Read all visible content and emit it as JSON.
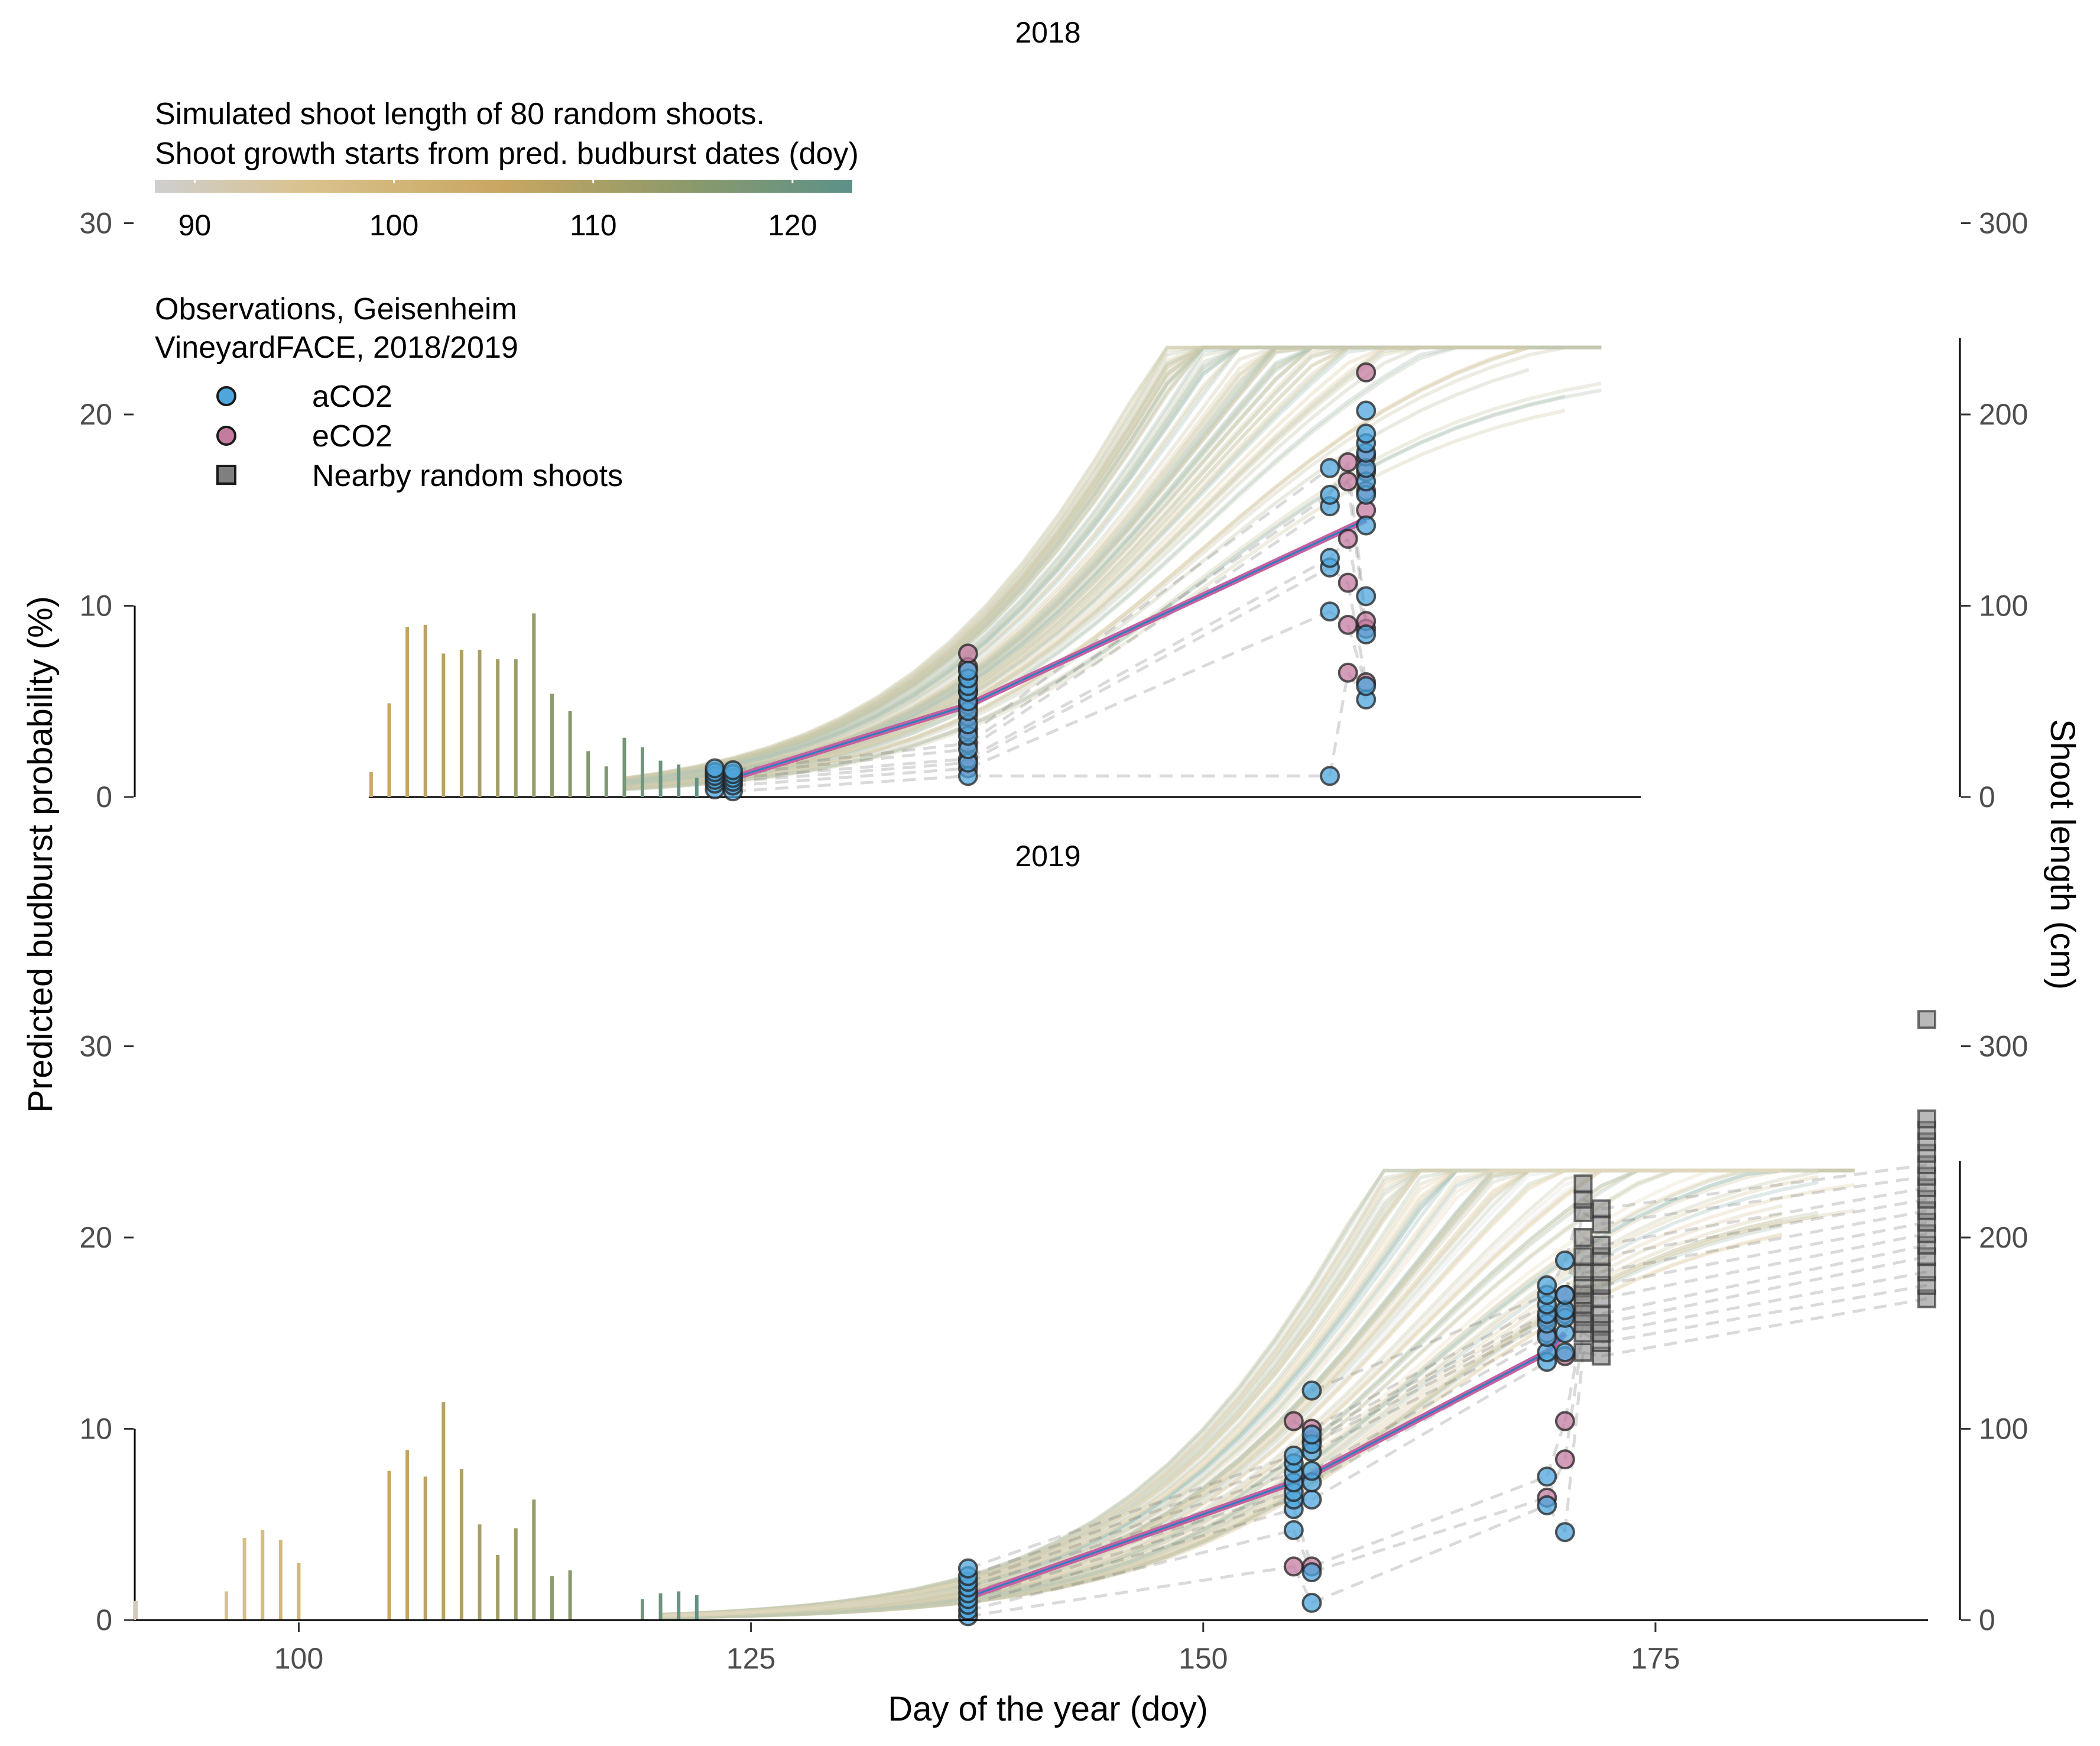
{
  "colors": {
    "grey": "#cfcfcf",
    "tan": "#d9c28c",
    "gold": "#c9a661",
    "olive": "#8f9a6a",
    "green": "#6d9272",
    "teal": "#5c9188",
    "aco2": "#4ea6dc",
    "eco2": "#c47ba0",
    "random": "#7f7f7f",
    "mean_line": "#c560a0"
  },
  "chart_data": {
    "type": "composite",
    "xlabel": "Day of the year (doy)",
    "ylabel_left": "Predicted budburst probability (%)",
    "ylabel_right": "Shoot length (cm)",
    "xlim": [
      91,
      190
    ],
    "x_ticks": [
      "100",
      "125",
      "150",
      "175"
    ],
    "x_tick_values": [
      100,
      125,
      150,
      175
    ],
    "ylim_left": [
      0,
      30
    ],
    "ylim_right": [
      0,
      300
    ],
    "y_ticks_left": [
      "0",
      "10",
      "20",
      "30"
    ],
    "y_ticks_right": [
      "0",
      "100",
      "200",
      "300"
    ],
    "colorbar": {
      "title_line1": "Simulated shoot length of 80 random shoots.",
      "title_line2": "Shoot growth starts from pred. budburst dates (doy)",
      "ticks": [
        "90",
        "100",
        "110",
        "120"
      ],
      "tick_values": [
        90,
        100,
        110,
        120
      ],
      "range": [
        88,
        123
      ]
    },
    "legend": {
      "title_line1": "Observations, Geisenheim",
      "title_line2": "VineyardFACE, 2018/2019",
      "items": [
        {
          "label": "aCO2",
          "shape": "circle",
          "color": "#4ea6dc"
        },
        {
          "label": "eCO2",
          "shape": "circle",
          "color": "#c47ba0"
        },
        {
          "label": "Nearby random shoots",
          "shape": "square",
          "color": "#7f7f7f"
        }
      ]
    },
    "panels": [
      {
        "title": "2018",
        "budburst_bars": [
          {
            "doy": 104,
            "pct": 1.3
          },
          {
            "doy": 105,
            "pct": 4.9
          },
          {
            "doy": 106,
            "pct": 8.9
          },
          {
            "doy": 107,
            "pct": 9.0
          },
          {
            "doy": 108,
            "pct": 7.5
          },
          {
            "doy": 109,
            "pct": 7.7
          },
          {
            "doy": 110,
            "pct": 7.7
          },
          {
            "doy": 111,
            "pct": 7.2
          },
          {
            "doy": 112,
            "pct": 7.2
          },
          {
            "doy": 113,
            "pct": 9.6
          },
          {
            "doy": 114,
            "pct": 5.4
          },
          {
            "doy": 115,
            "pct": 4.5
          },
          {
            "doy": 116,
            "pct": 2.4
          },
          {
            "doy": 117,
            "pct": 1.6
          },
          {
            "doy": 118,
            "pct": 3.1
          },
          {
            "doy": 119,
            "pct": 2.6
          },
          {
            "doy": 120,
            "pct": 1.9
          },
          {
            "doy": 121,
            "pct": 1.7
          },
          {
            "doy": 122,
            "pct": 1.0
          }
        ],
        "mean_shoot_length": [
          [
            123,
            8
          ],
          [
            124,
            10
          ],
          [
            137,
            48
          ],
          [
            159,
            145
          ]
        ],
        "obs_aco2": [
          {
            "doy": 123,
            "cm": [
              4,
              7,
              9,
              11,
              13,
              15
            ]
          },
          {
            "doy": 124,
            "cm": [
              3,
              6,
              8,
              10,
              12,
              14
            ]
          },
          {
            "doy": 137,
            "cm": [
              11,
              18,
              25,
              32,
              38,
              45,
              50,
              55,
              58,
              62,
              66
            ]
          },
          {
            "doy": 157,
            "cm": [
              11,
              97,
              120,
              125,
              152,
              158,
              172
            ]
          },
          {
            "doy": 159,
            "cm": [
              51,
              58,
              85,
              105,
              142,
              158,
              165,
              172,
              180,
              185,
              190,
              202
            ]
          }
        ],
        "obs_eco2": [
          {
            "doy": 137,
            "cm": [
              15,
              20,
              28,
              35,
              42,
              48,
              55,
              62,
              68,
              75
            ]
          },
          {
            "doy": 158,
            "cm": [
              65,
              90,
              112,
              135,
              165,
              175
            ]
          },
          {
            "doy": 159,
            "cm": [
              60,
              88,
              92,
              150,
              160,
              170,
              178,
              222
            ]
          }
        ],
        "random_shoots": []
      },
      {
        "title": "2019",
        "budburst_bars": [
          {
            "doy": 91,
            "pct": 1.0
          },
          {
            "doy": 96,
            "pct": 1.5
          },
          {
            "doy": 97,
            "pct": 4.3
          },
          {
            "doy": 98,
            "pct": 4.7
          },
          {
            "doy": 99,
            "pct": 4.2
          },
          {
            "doy": 100,
            "pct": 3.0
          },
          {
            "doy": 105,
            "pct": 7.8
          },
          {
            "doy": 106,
            "pct": 8.9
          },
          {
            "doy": 107,
            "pct": 7.5
          },
          {
            "doy": 108,
            "pct": 11.4
          },
          {
            "doy": 109,
            "pct": 7.9
          },
          {
            "doy": 110,
            "pct": 5.0
          },
          {
            "doy": 111,
            "pct": 3.4
          },
          {
            "doy": 112,
            "pct": 4.8
          },
          {
            "doy": 113,
            "pct": 6.3
          },
          {
            "doy": 114,
            "pct": 2.3
          },
          {
            "doy": 115,
            "pct": 2.6
          },
          {
            "doy": 119,
            "pct": 1.1
          },
          {
            "doy": 120,
            "pct": 1.4
          },
          {
            "doy": 121,
            "pct": 1.5
          },
          {
            "doy": 122,
            "pct": 1.3
          }
        ],
        "mean_shoot_length": [
          [
            137,
            12
          ],
          [
            155,
            72
          ],
          [
            156,
            76
          ],
          [
            169,
            140
          ],
          [
            170,
            150
          ]
        ],
        "obs_aco2": [
          {
            "doy": 137,
            "cm": [
              2,
              5,
              8,
              11,
              14,
              17,
              20,
              23,
              27
            ]
          },
          {
            "doy": 155,
            "cm": [
              47,
              58,
              63,
              67,
              72,
              77,
              82,
              86
            ]
          },
          {
            "doy": 156,
            "cm": [
              9,
              25,
              63,
              72,
              78,
              88,
              92,
              97,
              120
            ]
          },
          {
            "doy": 169,
            "cm": [
              60,
              75,
              135,
              140,
              148,
              155,
              160,
              165,
              170,
              175
            ]
          },
          {
            "doy": 170,
            "cm": [
              46,
              140,
              150,
              158,
              162,
              170,
              188
            ]
          }
        ],
        "obs_eco2": [
          {
            "doy": 155,
            "cm": [
              28,
              104
            ]
          },
          {
            "doy": 156,
            "cm": [
              28,
              94,
              100
            ]
          },
          {
            "doy": 169,
            "cm": [
              64,
              150,
              158
            ]
          },
          {
            "doy": 170,
            "cm": [
              84,
              104,
              138,
              160,
              170
            ]
          }
        ],
        "random_shoots": [
          {
            "doy": 171,
            "cm": [
              140,
              150,
              155,
              160,
              165,
              170,
              175,
              182,
              190,
              200,
              213,
              220,
              228
            ]
          },
          {
            "doy": 172,
            "cm": [
              138,
              145,
              150,
              155,
              160,
              168,
              175,
              182,
              190,
              196,
              207,
              215
            ]
          },
          {
            "doy": 190,
            "cm": [
              168,
              175,
              182,
              190,
              196,
              202,
              208,
              214,
              220,
              226,
              232,
              238,
              244,
              250,
              256,
              262,
              314
            ]
          }
        ]
      }
    ]
  }
}
